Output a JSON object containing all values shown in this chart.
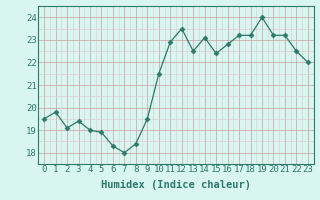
{
  "x": [
    0,
    1,
    2,
    3,
    4,
    5,
    6,
    7,
    8,
    9,
    10,
    11,
    12,
    13,
    14,
    15,
    16,
    17,
    18,
    19,
    20,
    21,
    22,
    23
  ],
  "y": [
    19.5,
    19.8,
    19.1,
    19.4,
    19.0,
    18.9,
    18.3,
    18.0,
    18.4,
    19.5,
    21.5,
    22.9,
    23.5,
    22.5,
    23.1,
    22.4,
    22.8,
    23.2,
    23.2,
    24.0,
    23.2,
    23.2,
    22.5,
    22.0
  ],
  "line_color": "#2d7a6a",
  "marker": "D",
  "marker_size": 2.5,
  "bg_color": "#d8f5f0",
  "grid_major_color": "#c8a0a0",
  "grid_minor_color": "#e0c8c8",
  "xlabel": "Humidex (Indice chaleur)",
  "ylim": [
    17.5,
    24.5
  ],
  "xlim": [
    -0.5,
    23.5
  ],
  "yticks": [
    18,
    19,
    20,
    21,
    22,
    23,
    24
  ],
  "xticks": [
    0,
    1,
    2,
    3,
    4,
    5,
    6,
    7,
    8,
    9,
    10,
    11,
    12,
    13,
    14,
    15,
    16,
    17,
    18,
    19,
    20,
    21,
    22,
    23
  ],
  "axis_color": "#2d7a6a",
  "tick_color": "#2d7a6a",
  "xlabel_color": "#2d7a6a",
  "xlabel_fontsize": 7.5,
  "tick_fontsize": 6.5
}
